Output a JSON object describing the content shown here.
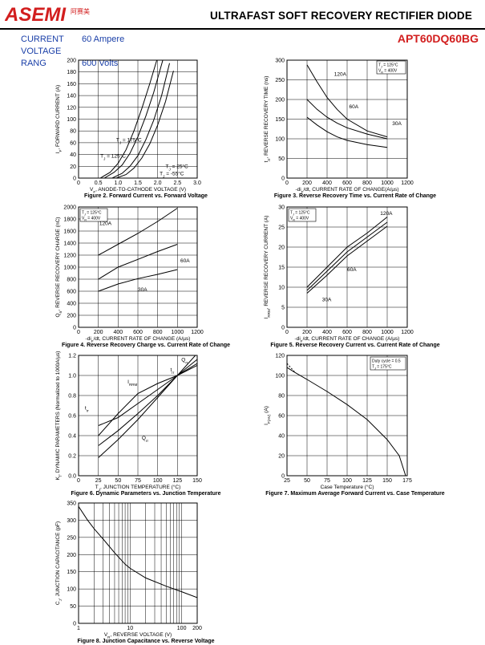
{
  "header": {
    "logo_text": "ASEMI",
    "logo_cn": "阿赛美",
    "title": "ULTRAFAST SOFT RECOVERY RECTIFIER DIODE",
    "part_number": "APT60DQ60BG"
  },
  "specs": [
    {
      "label": "CURRENT",
      "value": "60 Ampere"
    },
    {
      "label": "VOLTAGE RANG",
      "value": "600 Volts"
    }
  ],
  "chart_data": [
    {
      "id": "fig2",
      "type": "line",
      "title": "Figure 2. Forward Current vs. Forward Voltage",
      "xlabel": "V_F, ANODE-TO-CATHODE VOLTAGE (V)",
      "ylabel": "I_F, FORWARD CURRENT (A)",
      "xlim": [
        0,
        3.0
      ],
      "ylim": [
        0,
        200
      ],
      "xticks": [
        "0",
        "0.5",
        "1.0",
        "1.5",
        "2.0",
        "2.5",
        "3.0"
      ],
      "yticks": [
        "0",
        "20",
        "40",
        "60",
        "80",
        "100",
        "120",
        "140",
        "160",
        "180",
        "200"
      ],
      "series": [
        {
          "name": "T_J = 175°C",
          "x": [
            0.55,
            0.8,
            1.0,
            1.2,
            1.4,
            1.6,
            1.8,
            2.0
          ],
          "y": [
            0,
            10,
            25,
            48,
            80,
            118,
            160,
            205
          ]
        },
        {
          "name": "T_J = 125°C",
          "x": [
            0.65,
            0.9,
            1.1,
            1.3,
            1.5,
            1.7,
            1.9,
            2.15
          ],
          "y": [
            0,
            10,
            22,
            42,
            70,
            105,
            145,
            205
          ]
        },
        {
          "name": "T_J = 25°C",
          "x": [
            0.85,
            1.1,
            1.3,
            1.5,
            1.7,
            1.9,
            2.1,
            2.3
          ],
          "y": [
            0,
            8,
            20,
            38,
            65,
            98,
            140,
            195
          ]
        },
        {
          "name": "T_J = -55°C",
          "x": [
            0.95,
            1.2,
            1.4,
            1.6,
            1.8,
            2.0,
            2.2,
            2.4
          ],
          "y": [
            0,
            6,
            17,
            34,
            58,
            90,
            130,
            182
          ]
        }
      ],
      "labels": [
        {
          "text": "T_J = 175°C",
          "x": 0.95,
          "y": 62
        },
        {
          "text": "T_J = 125°C",
          "x": 0.55,
          "y": 35
        },
        {
          "text": "T_J = 25°C",
          "x": 2.2,
          "y": 17
        },
        {
          "text": "T_J = -55°C",
          "x": 2.05,
          "y": 5
        }
      ]
    },
    {
      "id": "fig3",
      "type": "line",
      "title": "Figure 3. Reverse Recovery Time vs. Current Rate of Change",
      "xlabel": "-di_F/dt, CURRENT RATE OF CHANGE(A/µs)",
      "ylabel": "t_rr, REVERSE RECOVERY TIME (ns)",
      "xlim": [
        0,
        1200
      ],
      "ylim": [
        0,
        300
      ],
      "xticks": [
        "0",
        "200",
        "400",
        "600",
        "800",
        "1000",
        "1200"
      ],
      "yticks": [
        "0",
        "50",
        "100",
        "150",
        "200",
        "250",
        "300"
      ],
      "legend": [
        "T_J = 125°C",
        "V_R = 400V"
      ],
      "series": [
        {
          "name": "120A",
          "x": [
            200,
            300,
            400,
            500,
            600,
            800,
            1000
          ],
          "y": [
            288,
            245,
            205,
            175,
            150,
            120,
            105
          ]
        },
        {
          "name": "60A",
          "x": [
            200,
            300,
            400,
            500,
            600,
            800,
            1000
          ],
          "y": [
            200,
            175,
            155,
            140,
            128,
            112,
            100
          ]
        },
        {
          "name": "30A",
          "x": [
            200,
            300,
            400,
            500,
            600,
            800,
            1000
          ],
          "y": [
            155,
            135,
            118,
            105,
            96,
            85,
            78
          ]
        }
      ],
      "labels": [
        {
          "text": "120A",
          "x": 470,
          "y": 260
        },
        {
          "text": "60A",
          "x": 620,
          "y": 178
        },
        {
          "text": "30A",
          "x": 1050,
          "y": 135
        }
      ]
    },
    {
      "id": "fig4",
      "type": "line",
      "title": "Figure 4. Reverse Recovery Charge vs. Current Rate of Change",
      "xlabel": "-di_F/dt, CURRENT RATE OF CHANGE (A/µs)",
      "ylabel": "Q_rr, REVERSE RECOVERY CHARGE (nC)",
      "xlim": [
        0,
        1200
      ],
      "ylim": [
        0,
        2000
      ],
      "xticks": [
        "0",
        "200",
        "400",
        "600",
        "800",
        "1000",
        "1200"
      ],
      "yticks": [
        "0",
        "200",
        "400",
        "600",
        "800",
        "1000",
        "1200",
        "1400",
        "1600",
        "1800",
        "2000"
      ],
      "legend": [
        "T_J = 125°C",
        "V_R = 400V"
      ],
      "series": [
        {
          "name": "120A",
          "x": [
            200,
            400,
            600,
            800,
            1000
          ],
          "y": [
            1200,
            1380,
            1560,
            1760,
            1980
          ]
        },
        {
          "name": "60A",
          "x": [
            200,
            400,
            600,
            800,
            1000
          ],
          "y": [
            800,
            1000,
            1130,
            1260,
            1380
          ]
        },
        {
          "name": "30A",
          "x": [
            200,
            400,
            600,
            800,
            1000
          ],
          "y": [
            600,
            720,
            810,
            880,
            960
          ]
        }
      ],
      "labels": [
        {
          "text": "120A",
          "x": 210,
          "y": 1700
        },
        {
          "text": "60A",
          "x": 1030,
          "y": 1080
        },
        {
          "text": "30A",
          "x": 600,
          "y": 600
        }
      ]
    },
    {
      "id": "fig5",
      "type": "line",
      "title": "Figure 5. Reverse Recovery Current vs. Current Rate of Change",
      "xlabel": "-di_F/dt, CURRENT RATE OF CHANGE (A/µs)",
      "ylabel": "I_RRM, REVERSE RECOVERY CURRENT (A)",
      "xlim": [
        0,
        1200
      ],
      "ylim": [
        0,
        30
      ],
      "xticks": [
        "0",
        "200",
        "400",
        "600",
        "800",
        "1000",
        "1200"
      ],
      "yticks": [
        "0",
        "5",
        "10",
        "15",
        "20",
        "25",
        "30"
      ],
      "legend": [
        "T_J = 125°C",
        "V_R = 400V"
      ],
      "series": [
        {
          "name": "120A",
          "x": [
            200,
            400,
            600,
            800,
            1000
          ],
          "y": [
            10,
            15,
            20,
            23.5,
            27.5
          ]
        },
        {
          "name": "60A",
          "x": [
            200,
            400,
            600,
            800,
            1000
          ],
          "y": [
            9.2,
            14,
            18.8,
            22.5,
            26.2
          ]
        },
        {
          "name": "30A",
          "x": [
            200,
            400,
            600,
            800,
            1000
          ],
          "y": [
            8.5,
            13,
            17.8,
            21.5,
            25.2
          ]
        }
      ],
      "labels": [
        {
          "text": "120A",
          "x": 930,
          "y": 28
        },
        {
          "text": "60A",
          "x": 600,
          "y": 14
        },
        {
          "text": "30A",
          "x": 350,
          "y": 6.5
        }
      ]
    },
    {
      "id": "fig6",
      "type": "line",
      "title": "Figure 6. Dynamic Parameters vs. Junction Temperature",
      "xlabel": "T_J, JUNCTION TEMPERATURE (°C)",
      "ylabel": "K_f, DYNAMIC PARAMETERS (Normalized to 1000A/µs)",
      "xlim": [
        0,
        150
      ],
      "ylim": [
        0,
        1.2
      ],
      "xticks": [
        "0",
        "25",
        "50",
        "75",
        "100",
        "125",
        "150"
      ],
      "yticks": [
        "0.0",
        "0.2",
        "0.4",
        "0.6",
        "0.8",
        "1.0",
        "1.2"
      ],
      "series": [
        {
          "name": "I_RRM",
          "x": [
            25,
            50,
            75,
            100,
            125,
            150
          ],
          "y": [
            0.4,
            0.62,
            0.82,
            0.92,
            1.0,
            1.12
          ]
        },
        {
          "name": "t_rr",
          "x": [
            25,
            50,
            75,
            100,
            125,
            150
          ],
          "y": [
            0.5,
            0.58,
            0.72,
            0.86,
            1.0,
            1.1
          ]
        },
        {
          "name": "Q_rr",
          "x": [
            25,
            50,
            75,
            100,
            125,
            150
          ],
          "y": [
            0.18,
            0.36,
            0.56,
            0.78,
            1.0,
            1.22
          ]
        },
        {
          "name": "t_fr",
          "x": [
            25,
            50,
            75,
            100,
            125,
            150
          ],
          "y": [
            0.3,
            0.45,
            0.62,
            0.8,
            1.0,
            1.16
          ]
        }
      ],
      "labels": [
        {
          "text": "I_RRM",
          "x": 62,
          "y": 0.92
        },
        {
          "text": "t_rr",
          "x": 8,
          "y": 0.66
        },
        {
          "text": "Q_rr",
          "x": 80,
          "y": 0.36
        },
        {
          "text": "Q_rr",
          "x": 130,
          "y": 1.14
        },
        {
          "text": "t_rr",
          "x": 116,
          "y": 1.04
        }
      ]
    },
    {
      "id": "fig7",
      "type": "line",
      "title": "Figure 7. Maximum Average Forward Current vs. Case Temperature",
      "xlabel": "Case Temperature (°C)",
      "ylabel": "I_F(AV) (A)",
      "xlim": [
        25,
        175
      ],
      "ylim": [
        0,
        120
      ],
      "xticks": [
        "25",
        "50",
        "75",
        "100",
        "125",
        "150",
        "175"
      ],
      "yticks": [
        "0",
        "20",
        "40",
        "60",
        "80",
        "100",
        "120"
      ],
      "legend": [
        "Duty cycle = 0.5",
        "T_J = 175°C"
      ],
      "series": [
        {
          "name": "I_F(AV)",
          "x": [
            25,
            35,
            50,
            75,
            100,
            125,
            150,
            165,
            173
          ],
          "y": [
            108,
            103,
            96,
            84,
            71,
            56,
            36,
            20,
            0
          ]
        }
      ]
    },
    {
      "id": "fig8",
      "type": "line",
      "title": "Figure 8. Junction Capacitance vs. Reverse Voltage",
      "xlabel": "V_R, REVERSE VOLTAGE (V)",
      "ylabel": "C_J, JUNCTION CAPACITANCE (pF)",
      "xscale": "log",
      "xlim": [
        1,
        200
      ],
      "ylim": [
        0,
        350
      ],
      "xticks": [
        "1",
        "10",
        "100",
        "200"
      ],
      "yticks": [
        "0",
        "50",
        "100",
        "150",
        "200",
        "250",
        "300",
        "350"
      ],
      "series": [
        {
          "name": "C_J",
          "x": [
            1,
            1.5,
            2,
            3,
            5,
            8,
            10,
            20,
            50,
            100,
            200
          ],
          "y": [
            340,
            300,
            275,
            245,
            205,
            172,
            160,
            132,
            108,
            92,
            75
          ]
        }
      ]
    }
  ]
}
